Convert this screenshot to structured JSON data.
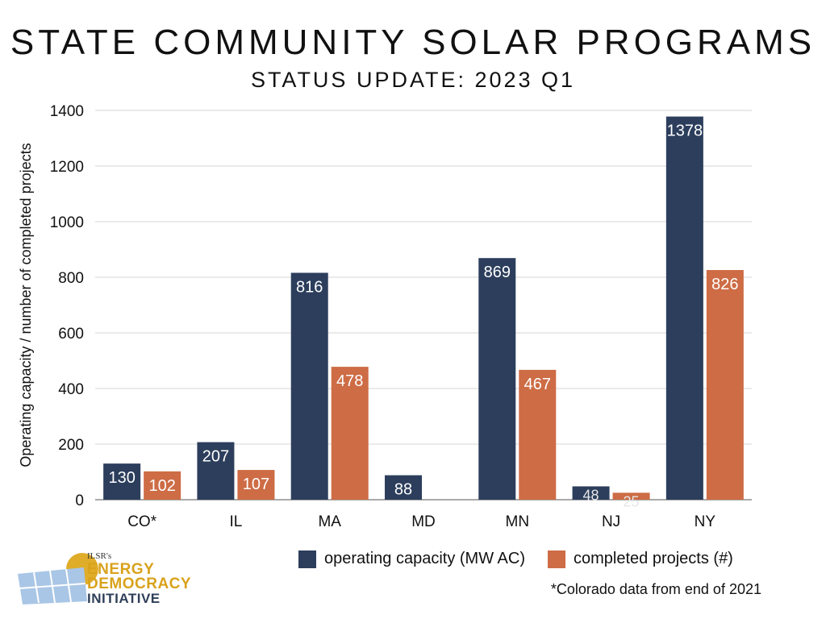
{
  "title": "STATE COMMUNITY SOLAR PROGRAMS",
  "subtitle": "STATUS UPDATE: 2023 Q1",
  "footnote": "*Colorado data from end of 2021",
  "logo": {
    "brand": "ILSR's",
    "line1": "ENERGY",
    "line2": "DEMOCRACY",
    "line3": "INITIATIVE"
  },
  "colors": {
    "operating": "#2c3e5c",
    "projects": "#cd6c45",
    "grid": "#d6d6d6"
  },
  "chart_data": {
    "type": "bar",
    "title": "STATE COMMUNITY SOLAR PROGRAMS",
    "subtitle": "STATUS UPDATE: 2023 Q1",
    "ylabel": "Operating capacity / number of completed projects",
    "xlabel": "",
    "ylim": [
      0,
      1400
    ],
    "yticks": [
      0,
      200,
      400,
      600,
      800,
      1000,
      1200,
      1400
    ],
    "grid": true,
    "legend_position": "bottom",
    "categories": [
      "CO*",
      "IL",
      "MA",
      "MD",
      "MN",
      "NJ",
      "NY"
    ],
    "series": [
      {
        "name": "operating capacity (MW AC)",
        "values": [
          130,
          207,
          816,
          88,
          869,
          48,
          1378
        ]
      },
      {
        "name": "completed projects (#)",
        "values": [
          102,
          107,
          478,
          null,
          467,
          25,
          826
        ]
      }
    ]
  }
}
